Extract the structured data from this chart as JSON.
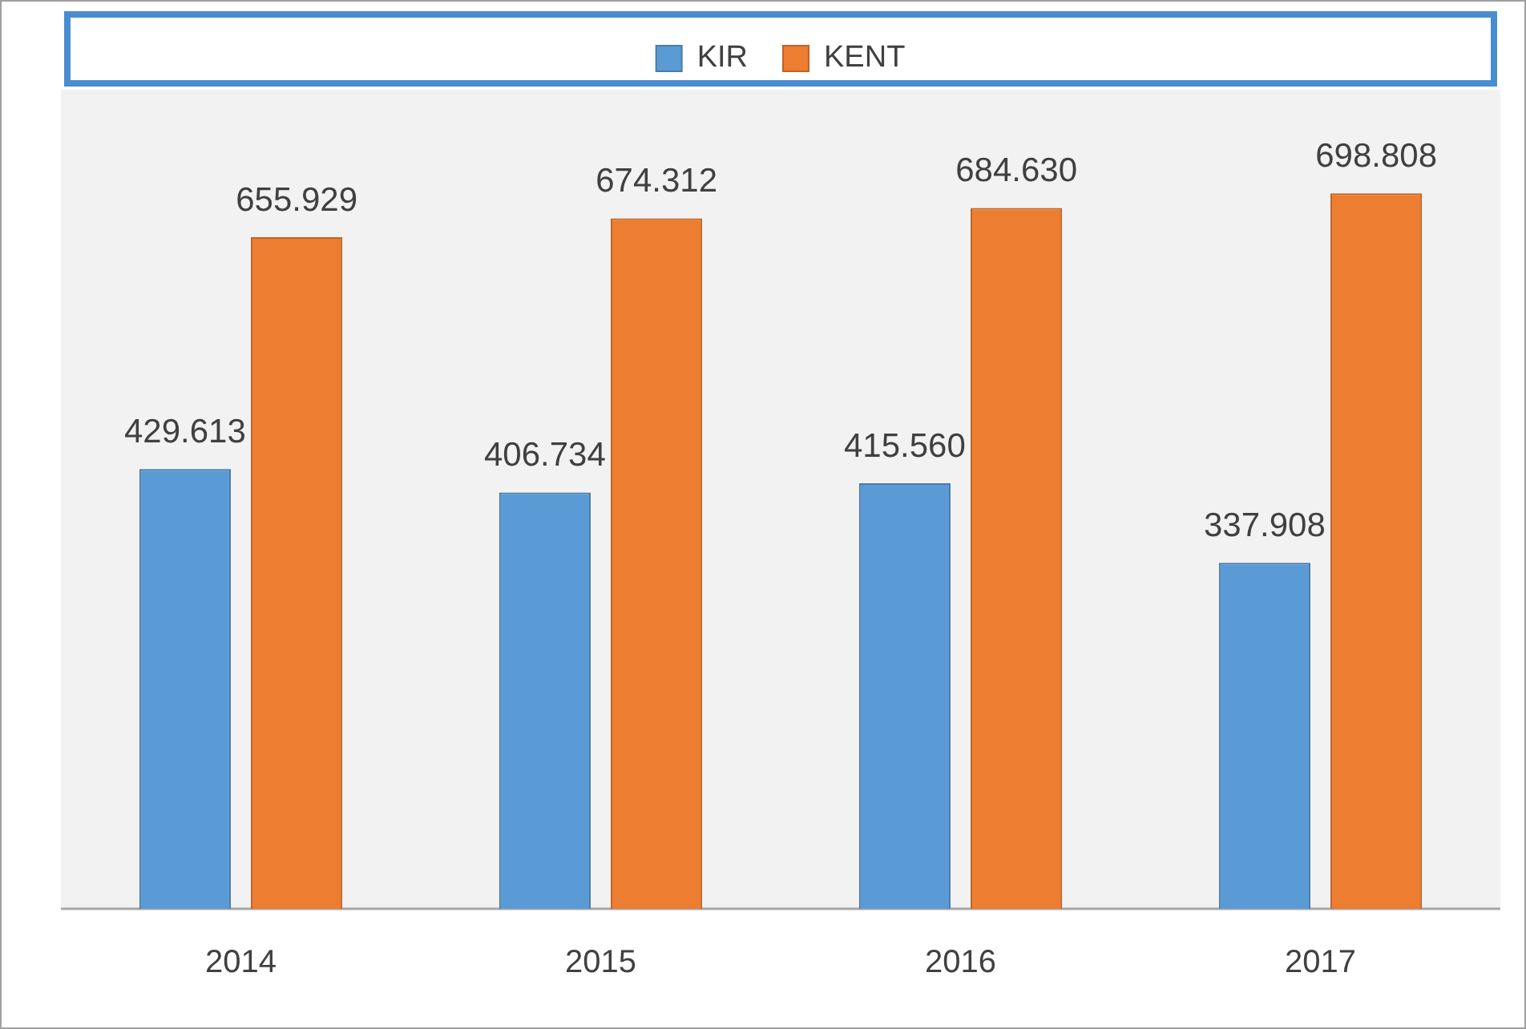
{
  "chart_data": {
    "type": "bar",
    "categories": [
      "2014",
      "2015",
      "2016",
      "2017"
    ],
    "series": [
      {
        "name": "KIR",
        "color": "#5b9bd5",
        "values": [
          429.613,
          406.734,
          415.56,
          337.908
        ],
        "value_labels": [
          "429.613",
          "406.734",
          "415.560",
          "337.908"
        ]
      },
      {
        "name": "KENT",
        "color": "#ed7d31",
        "values": [
          655.929,
          674.312,
          684.63,
          698.808
        ],
        "value_labels": [
          "655.929",
          "674.312",
          "684.630",
          "698.808"
        ]
      }
    ],
    "ylim": [
      0,
      800
    ],
    "tick_labels": "x",
    "legend": "top"
  }
}
